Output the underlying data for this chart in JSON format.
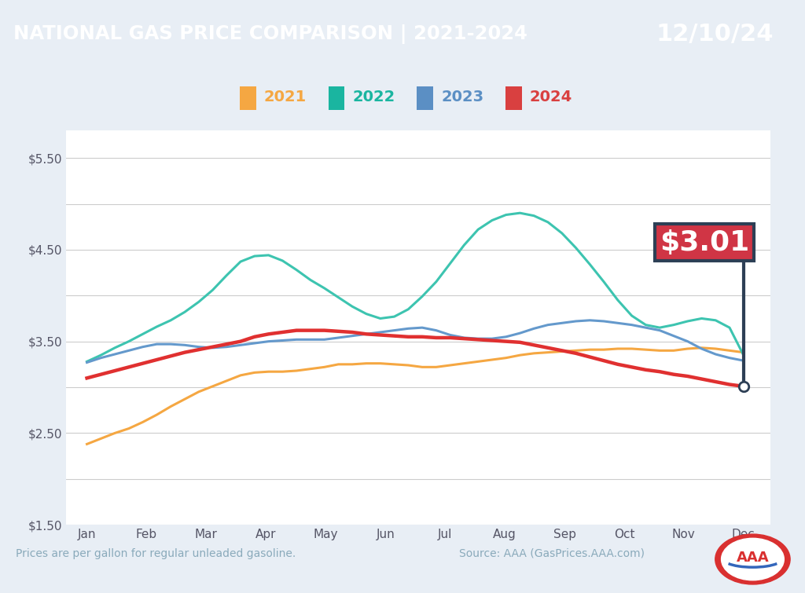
{
  "title_left": "NATIONAL GAS PRICE COMPARISON | 2021-2024",
  "title_right": "12/10/24",
  "title_bg_color": "#1a5b96",
  "title_right_bg_color": "#5a9ec9",
  "title_text_color": "#ffffff",
  "chart_bg_color": "#e8eef5",
  "plot_bg_color": "#ffffff",
  "footer_text_left": "Prices are per gallon for regular unleaded gasoline.",
  "footer_text_right": "Source: AAA (GasPrices.AAA.com)",
  "footer_text_color": "#8aaabb",
  "ylim": [
    1.5,
    5.8
  ],
  "yticks": [
    1.5,
    2.5,
    3.5,
    4.5,
    5.5
  ],
  "ytick_labels": [
    "$1.50",
    "$2.50",
    "$3.50",
    "$4.50",
    "$5.50"
  ],
  "grid_yticks": [
    1.5,
    2.0,
    2.5,
    3.0,
    3.5,
    4.0,
    4.5,
    5.0,
    5.5
  ],
  "xlabel_months": [
    "Jan",
    "Feb",
    "Mar",
    "Apr",
    "May",
    "Jun",
    "Jul",
    "Aug",
    "Sep",
    "Oct",
    "Nov",
    "Dec"
  ],
  "legend_years": [
    "2021",
    "2022",
    "2023",
    "2024"
  ],
  "line_colors": {
    "2021": "#f5a742",
    "2022": "#3dc4b0",
    "2023": "#6499cc",
    "2024": "#e03030"
  },
  "legend_colors": {
    "2021": "#f5a742",
    "2022": "#1ab5a0",
    "2023": "#5b8fc4",
    "2024": "#d94040"
  },
  "annotation_price": "$3.01",
  "annotation_box_color": "#d03545",
  "annotation_line_color": "#2d3f55",
  "data_2021": [
    2.38,
    2.44,
    2.5,
    2.55,
    2.62,
    2.7,
    2.79,
    2.87,
    2.95,
    3.01,
    3.07,
    3.13,
    3.16,
    3.17,
    3.17,
    3.18,
    3.2,
    3.22,
    3.25,
    3.25,
    3.26,
    3.26,
    3.25,
    3.24,
    3.22,
    3.22,
    3.24,
    3.26,
    3.28,
    3.3,
    3.32,
    3.35,
    3.37,
    3.38,
    3.39,
    3.4,
    3.41,
    3.41,
    3.42,
    3.42,
    3.41,
    3.4,
    3.4,
    3.42,
    3.43,
    3.42,
    3.4,
    3.38
  ],
  "data_2022": [
    3.28,
    3.35,
    3.43,
    3.5,
    3.58,
    3.66,
    3.73,
    3.82,
    3.93,
    4.06,
    4.22,
    4.37,
    4.43,
    4.44,
    4.38,
    4.28,
    4.17,
    4.08,
    3.98,
    3.88,
    3.8,
    3.75,
    3.77,
    3.85,
    3.99,
    4.15,
    4.35,
    4.55,
    4.72,
    4.82,
    4.88,
    4.9,
    4.87,
    4.8,
    4.68,
    4.52,
    4.34,
    4.15,
    3.95,
    3.78,
    3.68,
    3.65,
    3.68,
    3.72,
    3.75,
    3.73,
    3.65,
    3.35
  ],
  "data_2023": [
    3.27,
    3.32,
    3.36,
    3.4,
    3.44,
    3.47,
    3.47,
    3.46,
    3.44,
    3.43,
    3.44,
    3.46,
    3.48,
    3.5,
    3.51,
    3.52,
    3.52,
    3.52,
    3.54,
    3.56,
    3.58,
    3.6,
    3.62,
    3.64,
    3.65,
    3.62,
    3.57,
    3.54,
    3.53,
    3.53,
    3.55,
    3.59,
    3.64,
    3.68,
    3.7,
    3.72,
    3.73,
    3.72,
    3.7,
    3.68,
    3.65,
    3.62,
    3.56,
    3.5,
    3.42,
    3.36,
    3.32,
    3.29
  ],
  "data_2024": [
    3.1,
    3.14,
    3.18,
    3.22,
    3.26,
    3.3,
    3.34,
    3.38,
    3.41,
    3.44,
    3.47,
    3.5,
    3.55,
    3.58,
    3.6,
    3.62,
    3.62,
    3.62,
    3.61,
    3.6,
    3.58,
    3.57,
    3.56,
    3.55,
    3.55,
    3.54,
    3.54,
    3.53,
    3.52,
    3.51,
    3.5,
    3.49,
    3.46,
    3.43,
    3.4,
    3.37,
    3.33,
    3.29,
    3.25,
    3.22,
    3.19,
    3.17,
    3.14,
    3.12,
    3.09,
    3.06,
    3.03,
    3.01
  ]
}
